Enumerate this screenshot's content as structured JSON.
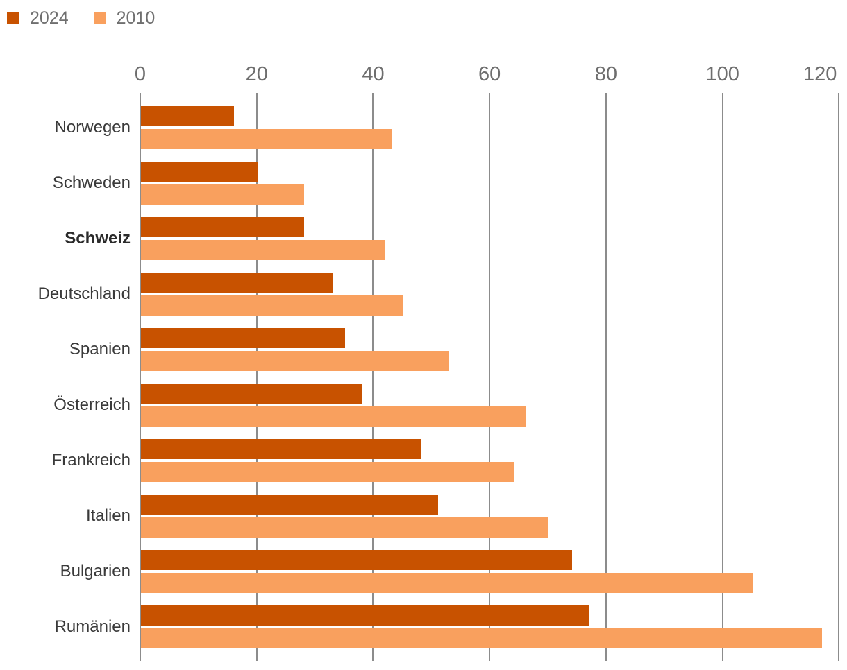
{
  "legend": {
    "items": [
      {
        "label": "2024",
        "color": "#c85200"
      },
      {
        "label": "2010",
        "color": "#f9a05e"
      }
    ]
  },
  "chart_data": {
    "type": "bar",
    "orientation": "horizontal",
    "categories": [
      "Norwegen",
      "Schweden",
      "Schweiz",
      "Deutschland",
      "Spanien",
      "Österreich",
      "Frankreich",
      "Italien",
      "Bulgarien",
      "Rumänien"
    ],
    "highlighted_category": "Schweiz",
    "series": [
      {
        "name": "2024",
        "color": "#c85200",
        "values": [
          16,
          20,
          28,
          33,
          35,
          38,
          48,
          51,
          74,
          77
        ]
      },
      {
        "name": "2010",
        "color": "#f9a05e",
        "values": [
          43,
          28,
          42,
          45,
          53,
          66,
          64,
          70,
          105,
          117
        ]
      }
    ],
    "x_axis": {
      "ticks": [
        0,
        20,
        40,
        60,
        80,
        100,
        120
      ],
      "min": 0,
      "max": 120,
      "position": "top",
      "grid": true
    },
    "legend_position": "top-left"
  },
  "colors": {
    "grid": "#8c8c8c",
    "tick_label": "#6e6e6e",
    "category_label": "#3a3a3a",
    "legend_label": "#6f6f6f",
    "background": "#ffffff"
  }
}
